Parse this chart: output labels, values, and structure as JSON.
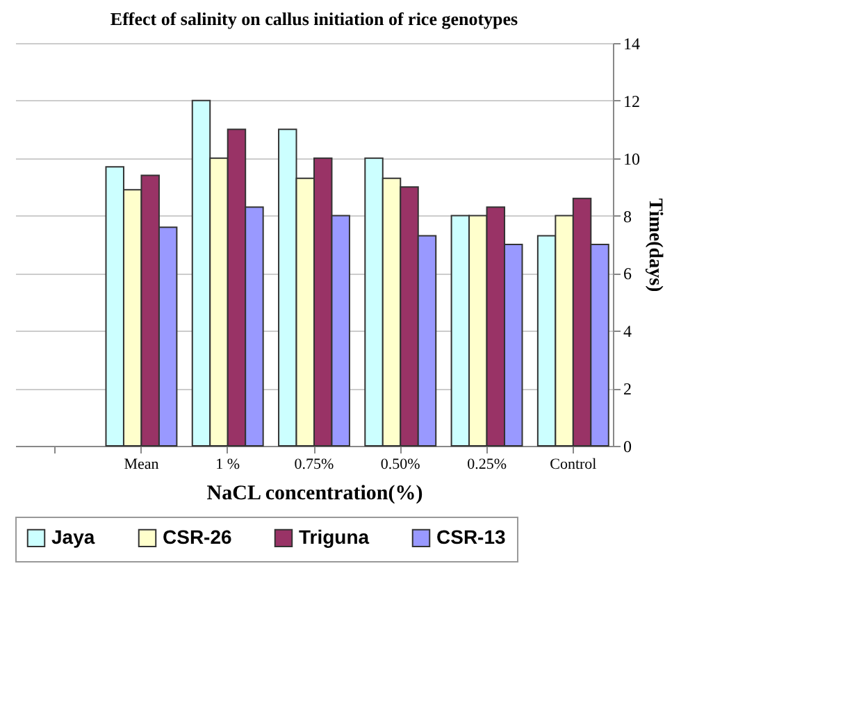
{
  "chart_data": {
    "type": "bar",
    "title": "Effect of salinity on callus initiation of rice genotypes",
    "xlabel": "NaCL concentration(%)",
    "ylabel": "Time(days)",
    "categories": [
      null,
      "Mean",
      "1 %",
      "0.75%",
      "0.50%",
      "0.25%",
      "Control"
    ],
    "series": [
      {
        "name": "Jaya",
        "color": "#ccffff",
        "values": [
          null,
          9.7,
          12,
          11,
          10,
          8,
          7.3
        ]
      },
      {
        "name": "CSR-26",
        "color": "#ffffcc",
        "values": [
          null,
          8.9,
          10,
          9.3,
          9.3,
          8,
          8
        ]
      },
      {
        "name": "Triguna",
        "color": "#993366",
        "values": [
          null,
          9.4,
          11,
          10,
          9,
          8.3,
          8.6
        ]
      },
      {
        "name": "CSR-13",
        "color": "#9999ff",
        "values": [
          null,
          7.6,
          8.3,
          8,
          7.3,
          7,
          7
        ]
      }
    ],
    "ylim": [
      0,
      14
    ],
    "yticks": [
      0,
      2,
      4,
      6,
      8,
      10,
      12,
      14
    ],
    "grid": "y",
    "legend": "bottom"
  }
}
